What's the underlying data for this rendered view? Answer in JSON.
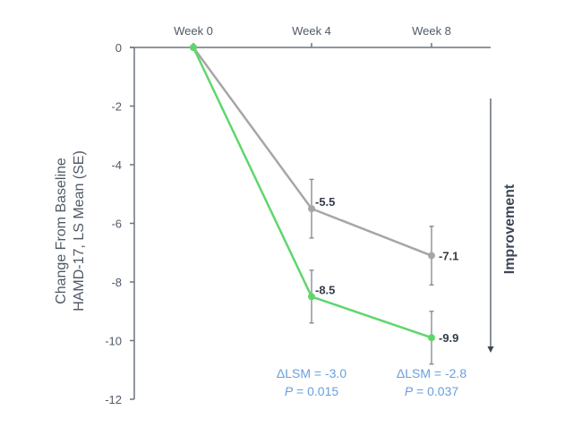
{
  "chart_data": {
    "type": "line",
    "categories": [
      "Week 0",
      "Week 4",
      "Week 8"
    ],
    "ylabel_lines": [
      "Change From Baseline",
      "HAMD-17, LS Mean (SE)"
    ],
    "ylim": [
      -12,
      0
    ],
    "yticks": [
      "0",
      "-2",
      "-4",
      "-6",
      "-8",
      "-10",
      "-12"
    ],
    "ytick_values": [
      0,
      -2,
      -4,
      -6,
      -8,
      -10,
      -12
    ],
    "grid": false,
    "series": [
      {
        "color": "#a6a6a6",
        "values": [
          0,
          -5.5,
          -7.1
        ],
        "se": [
          0,
          1.0,
          1.0
        ],
        "labels": [
          "",
          "-5.5",
          "-7.1"
        ]
      },
      {
        "color": "#5fd66c",
        "values": [
          0,
          -8.5,
          -9.9
        ],
        "se": [
          0,
          0.9,
          0.9
        ],
        "labels": [
          "",
          "-8.5",
          "-9.9"
        ]
      }
    ],
    "annotations": [
      {
        "lsm": "ΔLSM = -3.0",
        "p_label": "P",
        "p_value": " = 0.015"
      },
      {
        "lsm": "ΔLSM = -2.8",
        "p_label": "P",
        "p_value": " = 0.037"
      }
    ],
    "arrow_label": "Improvement",
    "colors": {
      "axis": "#6b7480",
      "annotation": "#6a9fdc"
    }
  }
}
